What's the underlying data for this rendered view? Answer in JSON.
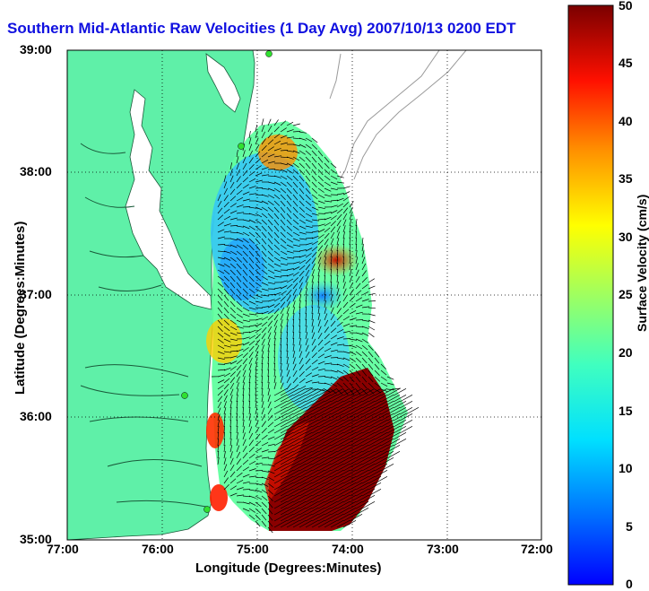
{
  "title": "Southern Mid-Atlantic Raw Velocities (1 Day Avg) 2007/10/13 0200 EDT",
  "xlabel": "Longitude (Degrees:Minutes)",
  "ylabel": "Latitude (Degrees:Minutes)",
  "colorbar_label": "Surface Velocity (cm/s)",
  "x_ticks": [
    "77:00",
    "76:00",
    "75:00",
    "74:00",
    "73:00",
    "72:00"
  ],
  "y_ticks": [
    "39:00",
    "38:00",
    "37:00",
    "36:00",
    "35:00"
  ],
  "colorbar_ticks": [
    "50",
    "45",
    "40",
    "35",
    "30",
    "25",
    "20",
    "15",
    "10",
    "5",
    "0"
  ],
  "colors": {
    "land": "#5ff0a8",
    "title": "#1010e0",
    "station": "#30e030"
  },
  "chart_data": {
    "type": "map",
    "xlim": [
      -77,
      -72
    ],
    "ylim": [
      35,
      39
    ],
    "colorbar_range": [
      0,
      50
    ],
    "colormap": "jet",
    "grid": true
  }
}
